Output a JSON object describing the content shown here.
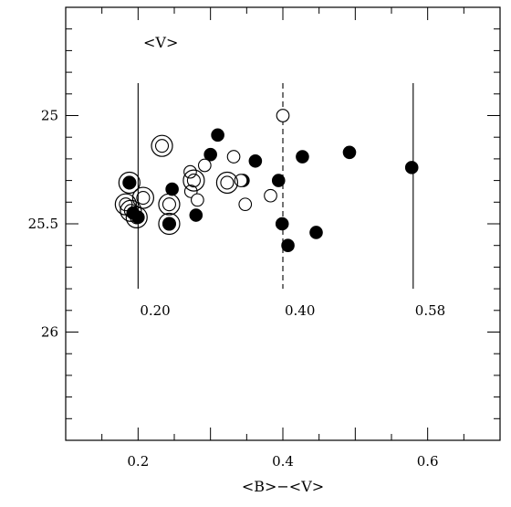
{
  "chart_data": {
    "type": "scatter",
    "title": "",
    "xlabel": "<B>−<V>",
    "ylabel": "",
    "panel_label": "<V>",
    "xlim": [
      0.1,
      0.7
    ],
    "ylim": [
      26.5,
      24.5
    ],
    "y_inverted": true,
    "grid": false,
    "x_ticks": [
      0.2,
      0.4,
      0.6
    ],
    "x_tick_labels": [
      "0.2",
      "0.4",
      "0.6"
    ],
    "y_ticks": [
      25,
      25.5,
      26
    ],
    "y_tick_labels": [
      "25",
      "25.5",
      "26"
    ],
    "vertical_lines": [
      {
        "x": 0.2,
        "style": "solid",
        "label": "0.20"
      },
      {
        "x": 0.4,
        "style": "dashed",
        "label": "0.40"
      },
      {
        "x": 0.58,
        "style": "solid",
        "label": "0.58"
      }
    ],
    "series": [
      {
        "marker": "filled-circle",
        "points": [
          {
            "x": 0.188,
            "y": 25.31
          },
          {
            "x": 0.193,
            "y": 25.45
          },
          {
            "x": 0.2,
            "y": 25.47
          },
          {
            "x": 0.243,
            "y": 25.5
          },
          {
            "x": 0.247,
            "y": 25.34
          },
          {
            "x": 0.28,
            "y": 25.46
          },
          {
            "x": 0.3,
            "y": 25.18
          },
          {
            "x": 0.31,
            "y": 25.09
          },
          {
            "x": 0.345,
            "y": 25.3
          },
          {
            "x": 0.362,
            "y": 25.21
          },
          {
            "x": 0.394,
            "y": 25.3
          },
          {
            "x": 0.399,
            "y": 25.5
          },
          {
            "x": 0.407,
            "y": 25.6
          },
          {
            "x": 0.427,
            "y": 25.19
          },
          {
            "x": 0.446,
            "y": 25.54
          },
          {
            "x": 0.492,
            "y": 25.17
          },
          {
            "x": 0.578,
            "y": 25.24
          }
        ]
      },
      {
        "marker": "open-circle",
        "points": [
          {
            "x": 0.4,
            "y": 25.0
          },
          {
            "x": 0.332,
            "y": 25.19
          },
          {
            "x": 0.292,
            "y": 25.23
          },
          {
            "x": 0.272,
            "y": 25.26
          },
          {
            "x": 0.273,
            "y": 25.35
          },
          {
            "x": 0.282,
            "y": 25.39
          },
          {
            "x": 0.342,
            "y": 25.3
          },
          {
            "x": 0.348,
            "y": 25.41
          },
          {
            "x": 0.383,
            "y": 25.37
          }
        ]
      },
      {
        "marker": "ringed-open-circle",
        "points": [
          {
            "x": 0.188,
            "y": 25.31
          },
          {
            "x": 0.183,
            "y": 25.41
          },
          {
            "x": 0.19,
            "y": 25.44
          },
          {
            "x": 0.198,
            "y": 25.47
          },
          {
            "x": 0.207,
            "y": 25.38
          },
          {
            "x": 0.233,
            "y": 25.14
          },
          {
            "x": 0.243,
            "y": 25.41
          },
          {
            "x": 0.243,
            "y": 25.5
          },
          {
            "x": 0.277,
            "y": 25.3
          },
          {
            "x": 0.323,
            "y": 25.31
          }
        ]
      }
    ]
  }
}
